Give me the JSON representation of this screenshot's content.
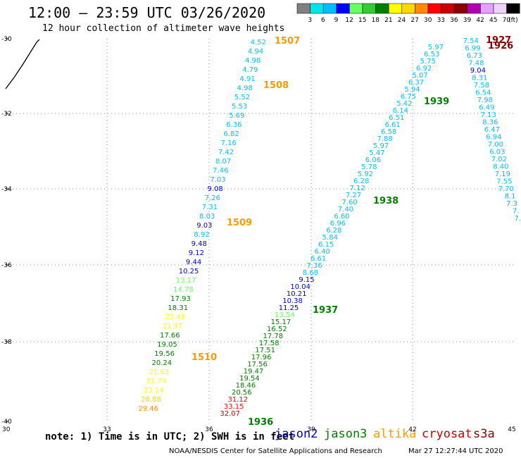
{
  "header": {
    "title": "12:00 — 23:59 UTC 03/26/2020",
    "subtitle": "12 hour collection of altimeter wave heights"
  },
  "colorbar": {
    "labels": [
      "3",
      "6",
      "9",
      "12",
      "15",
      "18",
      "21",
      "24",
      "27",
      "30",
      "33",
      "36",
      "39",
      "42",
      "45",
      "70",
      "(ft)"
    ],
    "colors": [
      "#808080",
      "#00e6e6",
      "#00bfff",
      "#0000ff",
      "#66ff66",
      "#33cc33",
      "#007f00",
      "#ffff00",
      "#ffd700",
      "#ff8c00",
      "#ff0000",
      "#cc0000",
      "#8b0000",
      "#b000b0",
      "#e6a0ff",
      "#f0d0ff",
      "#000000"
    ]
  },
  "axes": {
    "x_ticks": [
      "30",
      "33",
      "36",
      "39",
      "42",
      "45"
    ],
    "y_ticks": [
      "-30",
      "-32",
      "-34",
      "-36",
      "-38",
      "-40"
    ]
  },
  "passes": [
    {
      "label": "1507",
      "color": "#ff9900"
    },
    {
      "label": "1508",
      "color": "#ff9900"
    },
    {
      "label": "1509",
      "color": "#ff9900"
    },
    {
      "label": "1510",
      "color": "#ff9900"
    },
    {
      "label": "1927",
      "color": "#8b0000"
    },
    {
      "label": "1926",
      "color": "#8b0000"
    },
    {
      "label": "1939",
      "color": "#008000"
    },
    {
      "label": "1938",
      "color": "#008000"
    },
    {
      "label": "1937",
      "color": "#008000"
    },
    {
      "label": "1936",
      "color": "#008000"
    }
  ],
  "tracks": [
    {
      "values": [
        "4.52",
        "4.94",
        "4.98",
        "4.79",
        "4.91",
        "4.98",
        "5.52",
        "5.53",
        "5.69",
        "6.36",
        "6.82",
        "7.16",
        "7.42",
        "8.07",
        "7.46",
        "7.03",
        "9.08",
        "7.26",
        "7.31",
        "8.03",
        "9.03",
        "8.92",
        "9.48",
        "9.12",
        "9.44",
        "10.25",
        "13.17",
        "14.78",
        "17.93",
        "18.31",
        "22.49",
        "21.97",
        "17.66",
        "19.05",
        "19.56",
        "20.24",
        "21.63",
        "21.74",
        "23.14",
        "26.88",
        "29.46"
      ],
      "colors": [
        "#00bfff",
        "#00bfff",
        "#00bfff",
        "#00bfff",
        "#00bfff",
        "#00bfff",
        "#00bfff",
        "#00bfff",
        "#00bfff",
        "#00bfff",
        "#00bfff",
        "#00bfff",
        "#00bfff",
        "#00bfff",
        "#00bfff",
        "#00bfff",
        "#0000cd",
        "#00bfff",
        "#00bfff",
        "#00bfff",
        "#0000cd",
        "#00bfff",
        "#0000cd",
        "#0000cd",
        "#0000cd",
        "#0000cd",
        "#66ff66",
        "#66ff66",
        "#008000",
        "#008000",
        "#ffff00",
        "#ffff00",
        "#008000",
        "#008000",
        "#008000",
        "#008000",
        "#ffff00",
        "#ffff00",
        "#ffff00",
        "#ffd700",
        "#ff8c00"
      ]
    },
    {
      "values": [
        "5.97",
        "6.53",
        "5.75",
        "6.92",
        "5.07",
        "6.37",
        "5.94",
        "6.75",
        "5.42",
        "6.14",
        "6.51",
        "6.61",
        "6.58",
        "7.88",
        "5.97",
        "5.47",
        "6.06",
        "5.78",
        "5.92",
        "6.28",
        "7.12",
        "7.27",
        "7.60",
        "7.40",
        "6.60",
        "6.96",
        "6.28",
        "5.84",
        "6.15",
        "6.40",
        "6.61",
        "7.36",
        "8.68",
        "9.15",
        "10.04",
        "10.21",
        "10.38",
        "11.25",
        "13.54",
        "15.17",
        "16.52",
        "17.78",
        "17.58",
        "17.51",
        "17.96",
        "17.56",
        "19.47",
        "19.54",
        "18.46",
        "20.56",
        "31.12",
        "33.15",
        "32.07"
      ],
      "colors": [
        "#00bfff",
        "#00bfff",
        "#00bfff",
        "#00bfff",
        "#00bfff",
        "#00bfff",
        "#00bfff",
        "#00bfff",
        "#00bfff",
        "#00bfff",
        "#00bfff",
        "#00bfff",
        "#00bfff",
        "#00bfff",
        "#00bfff",
        "#00bfff",
        "#00bfff",
        "#00bfff",
        "#00bfff",
        "#00bfff",
        "#00bfff",
        "#00bfff",
        "#00bfff",
        "#00bfff",
        "#00bfff",
        "#00bfff",
        "#00bfff",
        "#00bfff",
        "#00bfff",
        "#00bfff",
        "#00bfff",
        "#00bfff",
        "#00bfff",
        "#0000cd",
        "#0000cd",
        "#0000cd",
        "#0000cd",
        "#0000cd",
        "#66ff66",
        "#008000",
        "#008000",
        "#008000",
        "#008000",
        "#008000",
        "#008000",
        "#008000",
        "#008000",
        "#008000",
        "#008000",
        "#008000",
        "#ff0000",
        "#ff0000",
        "#cc0000"
      ]
    },
    {
      "values": [
        "7.54",
        "6.99",
        "6.73",
        "7.48",
        "9.04",
        "8.31",
        "7.58",
        "6.54",
        "7.98",
        "6.49",
        "7.13",
        "8.36",
        "6.47",
        "6.94",
        "7.00",
        "6.03",
        "7.02",
        "8.40",
        "7.19",
        "7.55",
        "7.70",
        "8.1",
        "7.3",
        "7.",
        "7."
      ],
      "colors": [
        "#00bfff",
        "#00bfff",
        "#00bfff",
        "#00bfff",
        "#0000cd",
        "#00bfff",
        "#00bfff",
        "#00bfff",
        "#00bfff",
        "#00bfff",
        "#00bfff",
        "#00bfff",
        "#00bfff",
        "#00bfff",
        "#00bfff",
        "#00bfff",
        "#00bfff",
        "#00bfff",
        "#00bfff",
        "#00bfff",
        "#00bfff",
        "#00bfff",
        "#00bfff",
        "#00bfff",
        "#00bfff"
      ]
    }
  ],
  "coast_label": "",
  "footer": {
    "note": "note: 1) Time is in UTC; 2) SWH is in feet",
    "credit": "NOAA/NESDIS Center for Satellite Applications and Research",
    "date": "Mar 27 12:27:44 UTC 2020",
    "satellites": [
      {
        "name": "jason2",
        "color": "#0000cd"
      },
      {
        "name": "jason3",
        "color": "#008000"
      },
      {
        "name": "altika",
        "color": "#ff9900"
      },
      {
        "name": "cryosat",
        "color": "#cc0000"
      },
      {
        "name": "s3a",
        "color": "#8b0000"
      }
    ]
  }
}
